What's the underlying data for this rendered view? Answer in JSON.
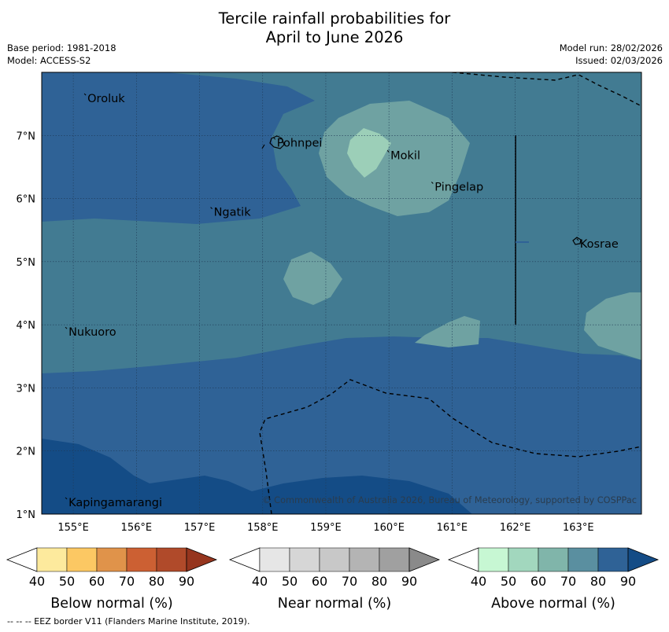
{
  "title": {
    "line1": "Tercile rainfall probabilities for",
    "line2": "April to June 2026"
  },
  "meta": {
    "base_period": "Base period: 1981-2018",
    "model": "Model: ACCESS-S2",
    "model_run": "Model run: 28/02/2026",
    "issued": "Issued: 02/03/2026"
  },
  "map": {
    "lon_range": [
      154.5,
      164.0
    ],
    "lat_range": [
      1.0,
      8.0
    ],
    "lon_ticks": [
      "155°E",
      "156°E",
      "157°E",
      "158°E",
      "159°E",
      "160°E",
      "161°E",
      "162°E",
      "163°E"
    ],
    "lat_ticks": [
      "1°N",
      "2°N",
      "3°N",
      "4°N",
      "5°N",
      "6°N",
      "7°N"
    ],
    "places": [
      {
        "name": "Oroluk",
        "lon": 155.2,
        "lat": 7.6
      },
      {
        "name": "Pohnpei",
        "lon": 158.2,
        "lat": 6.9
      },
      {
        "name": "Mokil",
        "lon": 160.0,
        "lat": 6.7
      },
      {
        "name": "Pingelap",
        "lon": 160.7,
        "lat": 6.2
      },
      {
        "name": "Ngatik",
        "lon": 157.2,
        "lat": 5.8
      },
      {
        "name": "Kosrae",
        "lon": 163.0,
        "lat": 5.3
      },
      {
        "name": "Nukuoro",
        "lon": 154.9,
        "lat": 3.9
      },
      {
        "name": "Kapingamarangi",
        "lon": 154.9,
        "lat": 1.2
      }
    ],
    "copyright": "© Commonwealth of Australia 2026, Bureau of Meteorology, supported by COSPPac"
  },
  "colorbars": [
    {
      "label": "Below normal (%)",
      "ticks": [
        "40",
        "50",
        "60",
        "70",
        "80",
        "90"
      ],
      "colors": [
        "#ffffff",
        "#fdea9d",
        "#fcc863",
        "#e0934a",
        "#cc6033",
        "#b04a2a",
        "#96351e"
      ]
    },
    {
      "label": "Near normal (%)",
      "ticks": [
        "40",
        "50",
        "60",
        "70",
        "80",
        "90"
      ],
      "colors": [
        "#ffffff",
        "#e6e6e6",
        "#d6d6d6",
        "#c8c8c8",
        "#b4b4b4",
        "#a0a0a0",
        "#8a8a8a"
      ]
    },
    {
      "label": "Above normal (%)",
      "ticks": [
        "40",
        "50",
        "60",
        "70",
        "80",
        "90"
      ],
      "colors": [
        "#ffffff",
        "#c7f7d3",
        "#a2d7be",
        "#80b5aa",
        "#5a8fa0",
        "#2f6296",
        "#144c86"
      ]
    }
  ],
  "footer": "--  --  -- EEZ border V11 (Flanders Marine Institute, 2019)."
}
